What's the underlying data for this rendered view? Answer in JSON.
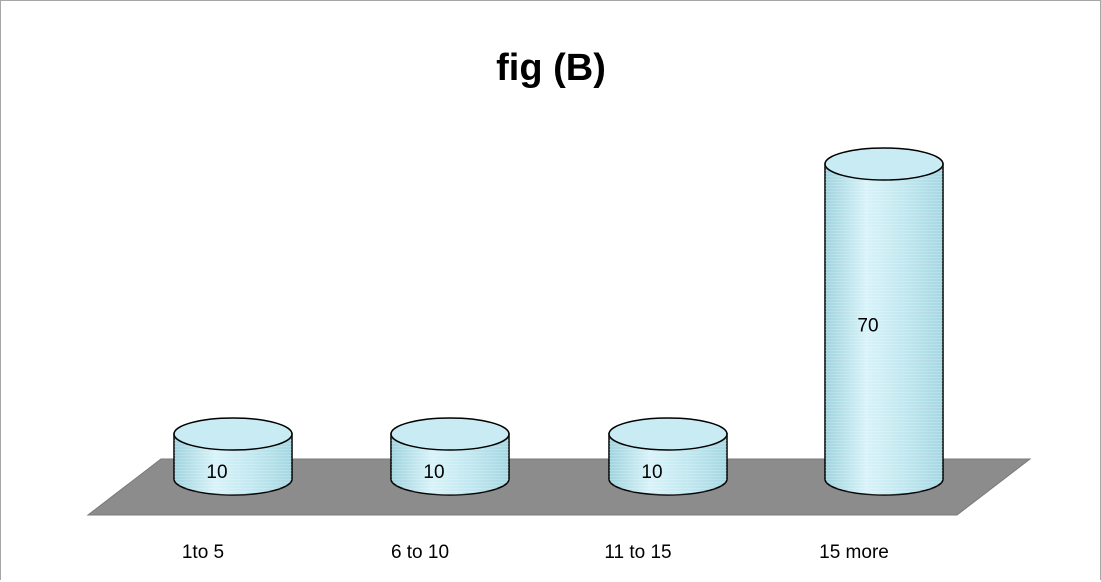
{
  "chart_data": {
    "type": "bar",
    "style": "3d-cylinder",
    "title": "fig (B)",
    "categories": [
      "1to 5",
      "6 to 10",
      "11 to 15",
      "15 more"
    ],
    "values": [
      10,
      10,
      10,
      70
    ],
    "data_labels": [
      "10",
      "10",
      "10",
      "70"
    ],
    "xlabel": "",
    "ylabel": "",
    "ylim": [
      0,
      70
    ],
    "grid": false,
    "legend": "none",
    "colors": {
      "bar_fill": "#bfe6ef",
      "bar_top": "#c9ecf4",
      "bar_outline": "#000000",
      "floor": "#8c8c8c"
    }
  }
}
